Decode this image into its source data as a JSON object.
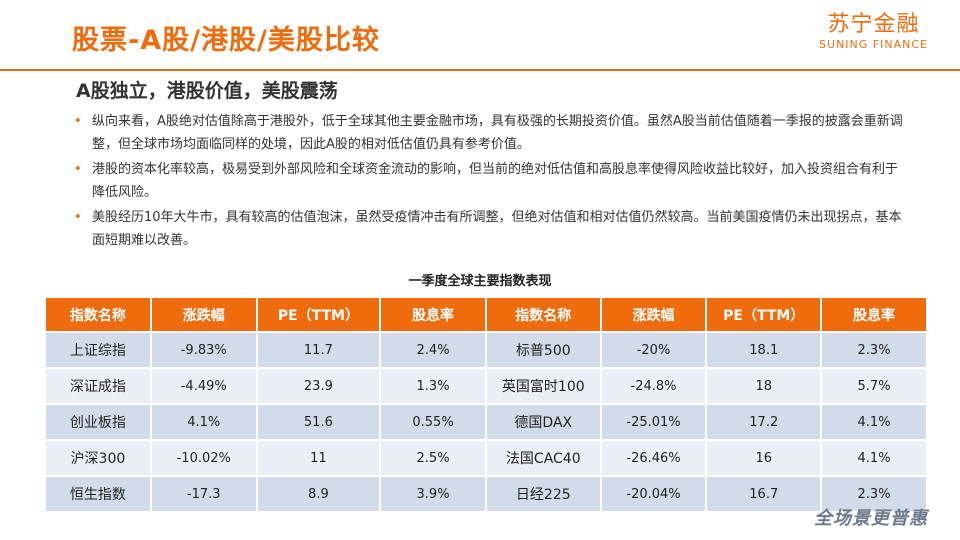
{
  "header": {
    "title": "股票-A股/港股/美股比较",
    "logo_cn": "苏宁金融",
    "logo_en": "SUNING FINANCE"
  },
  "subtitle": "A股独立，港股价值，美股震荡",
  "bullets": [
    "纵向来看，A股绝对估值除高于港股外，低于全球其他主要金融市场，具有极强的长期投资价值。虽然A股当前估值随着一季报的披露会重新调整，但全球市场均面临同样的处境，因此A股的相对低估值仍具有参考价值。",
    "港股的资本化率较高，极易受到外部风险和全球资金流动的影响，但当前的绝对低估值和高股息率使得风险收益比较好，加入投资组合有利于降低风险。",
    "美股经历10年大牛市，具有较高的估值泡沫，虽然受疫情冲击有所调整，但绝对估值和相对估值仍然较高。当前美国疫情仍未出现拐点，基本面短期难以改善。"
  ],
  "table": {
    "title": "一季度全球主要指数表现",
    "headers": [
      "指数名称",
      "涨跌幅",
      "PE（TTM）",
      "股息率",
      "指数名称",
      "涨跌幅",
      "PE（TTM）",
      "股息率"
    ],
    "rows": [
      [
        "上证综指",
        "-9.83%",
        "11.7",
        "2.4%",
        "标普500",
        "-20%",
        "18.1",
        "2.3%"
      ],
      [
        "深证成指",
        "-4.49%",
        "23.9",
        "1.3%",
        "英国富时100",
        "-24.8%",
        "18",
        "5.7%"
      ],
      [
        "创业板指",
        "4.1%",
        "51.6",
        "0.55%",
        "德国DAX",
        "-25.01%",
        "17.2",
        "4.1%"
      ],
      [
        "沪深300",
        "-10.02%",
        "11",
        "2.5%",
        "法国CAC40",
        "-26.46%",
        "16",
        "4.1%"
      ],
      [
        "恒生指数",
        "-17.3",
        "8.9",
        "3.9%",
        "日经225",
        "-20.04%",
        "16.7",
        "2.3%"
      ]
    ]
  },
  "footer": {
    "slogan": "全场景更普惠"
  },
  "colors": {
    "accent": "#f06b0c",
    "row_dark": "#d2dbe9",
    "row_light": "#eaeff6"
  }
}
